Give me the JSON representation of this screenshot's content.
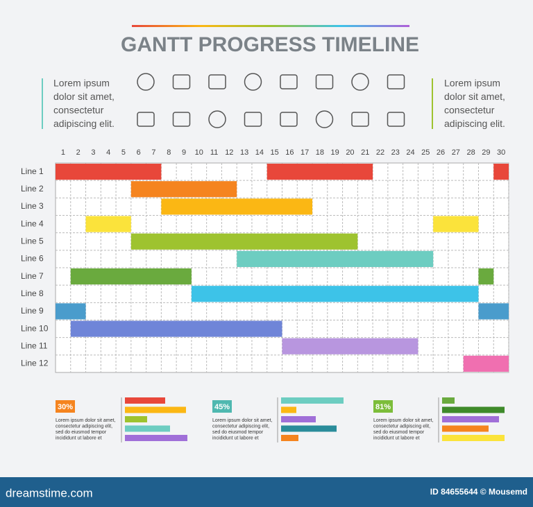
{
  "chart_data": {
    "type": "gantt",
    "title": "GANTT PROGRESS TIMELINE",
    "xlim": [
      0.5,
      30.5
    ],
    "xticks": [
      1,
      2,
      3,
      4,
      5,
      6,
      7,
      8,
      9,
      10,
      11,
      12,
      13,
      14,
      15,
      16,
      17,
      18,
      19,
      20,
      21,
      22,
      23,
      24,
      25,
      26,
      27,
      28,
      29,
      30
    ],
    "grid": true,
    "tasks": [
      {
        "label": "Line 1",
        "color": "#e8473a",
        "spans": [
          [
            1,
            7
          ],
          [
            15,
            21
          ],
          [
            30,
            30
          ]
        ]
      },
      {
        "label": "Line 2",
        "color": "#f5841f",
        "spans": [
          [
            6,
            12
          ]
        ]
      },
      {
        "label": "Line 3",
        "color": "#fbb714",
        "spans": [
          [
            8,
            17
          ]
        ]
      },
      {
        "label": "Line 4",
        "color": "#fbe33b",
        "spans": [
          [
            3,
            5
          ],
          [
            26,
            28
          ]
        ]
      },
      {
        "label": "Line 5",
        "color": "#9ec32f",
        "spans": [
          [
            6,
            20
          ]
        ]
      },
      {
        "label": "Line 6",
        "color": "#6dcdc1",
        "spans": [
          [
            13,
            25
          ]
        ]
      },
      {
        "label": "Line 7",
        "color": "#6aaa3e",
        "spans": [
          [
            2,
            9
          ],
          [
            29,
            29
          ]
        ]
      },
      {
        "label": "Line 8",
        "color": "#3dc3e8",
        "spans": [
          [
            10,
            28
          ]
        ]
      },
      {
        "label": "Line 9",
        "color": "#4a9ccc",
        "spans": [
          [
            1,
            2
          ],
          [
            29,
            30
          ]
        ]
      },
      {
        "label": "Line 10",
        "color": "#6f85d8",
        "spans": [
          [
            2,
            15
          ]
        ]
      },
      {
        "label": "Line 11",
        "color": "#b896df",
        "spans": [
          [
            16,
            24
          ]
        ]
      },
      {
        "label": "Line 12",
        "color": "#f06fb0",
        "spans": [
          [
            28,
            30
          ]
        ]
      }
    ]
  },
  "left_text": [
    "Lorem ipsum",
    "dolor sit amet,",
    "consectetur",
    "adipiscing elit."
  ],
  "right_text": [
    "Lorem ipsum",
    "dolor sit amet,",
    "consectetur",
    "adipiscing elit."
  ],
  "blocks": [
    {
      "badge": "30%",
      "badge_color": "#f5841f",
      "text": [
        "Lorem ipsum dolor sit amet,",
        "consectetur adipiscing elit,",
        "sed do eiusmod tempor",
        "incididunt ut labore et"
      ],
      "bars": [
        {
          "color": "#e8473a",
          "value": 58
        },
        {
          "color": "#fbb714",
          "value": 88
        },
        {
          "color": "#9ec32f",
          "value": 32
        },
        {
          "color": "#6dcdc1",
          "value": 65
        },
        {
          "color": "#a06fd8",
          "value": 90
        }
      ]
    },
    {
      "badge": "45%",
      "badge_color": "#4fb8b0",
      "text": [
        "Lorem ipsum dolor sit amet,",
        "consectetur adipiscing elit,",
        "sed do eiusmod tempor",
        "incididunt ut labore et"
      ],
      "bars": [
        {
          "color": "#6dcdc1",
          "value": 90
        },
        {
          "color": "#fbb714",
          "value": 22
        },
        {
          "color": "#a06fd8",
          "value": 50
        },
        {
          "color": "#2a8c9a",
          "value": 80
        },
        {
          "color": "#f5841f",
          "value": 25
        }
      ]
    },
    {
      "badge": "81%",
      "badge_color": "#7cbd3a",
      "text": [
        "Lorem ipsum dolor sit amet,",
        "consectetur adipiscing elit,",
        "sed do eiusmod tempor",
        "incididunt ut labore et"
      ],
      "bars": [
        {
          "color": "#6aaa3e",
          "value": 18
        },
        {
          "color": "#3f8a2a",
          "value": 90
        },
        {
          "color": "#a06fd8",
          "value": 82
        },
        {
          "color": "#f5841f",
          "value": 67
        },
        {
          "color": "#fbe33b",
          "value": 90
        }
      ]
    }
  ],
  "footer": {
    "site": "dreamstime.com",
    "credit": "ID 84655644 © Mousemd"
  }
}
